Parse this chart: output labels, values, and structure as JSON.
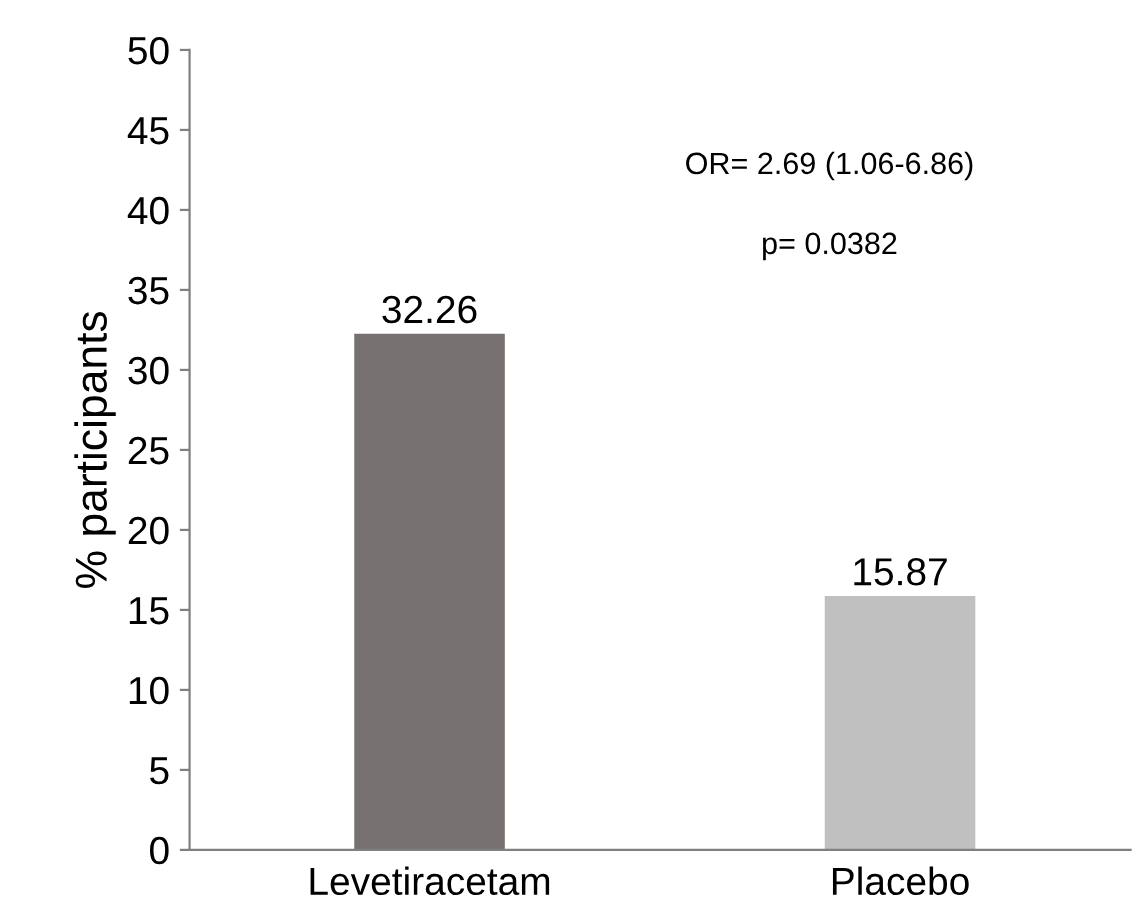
{
  "chart_data": {
    "type": "bar",
    "ylabel": "% participants",
    "categories": [
      "Levetiracetam",
      "Placebo"
    ],
    "values": [
      32.26,
      15.87
    ],
    "colors": [
      "#767070",
      "#c0c0c0"
    ],
    "ylim": [
      0,
      50
    ],
    "yticks": [
      0,
      5,
      10,
      15,
      20,
      25,
      30,
      35,
      40,
      45,
      50
    ],
    "grid": false,
    "data_labels": true,
    "annotations": [
      "OR= 2.69 (1.06-6.86)",
      "p= 0.0382"
    ]
  }
}
